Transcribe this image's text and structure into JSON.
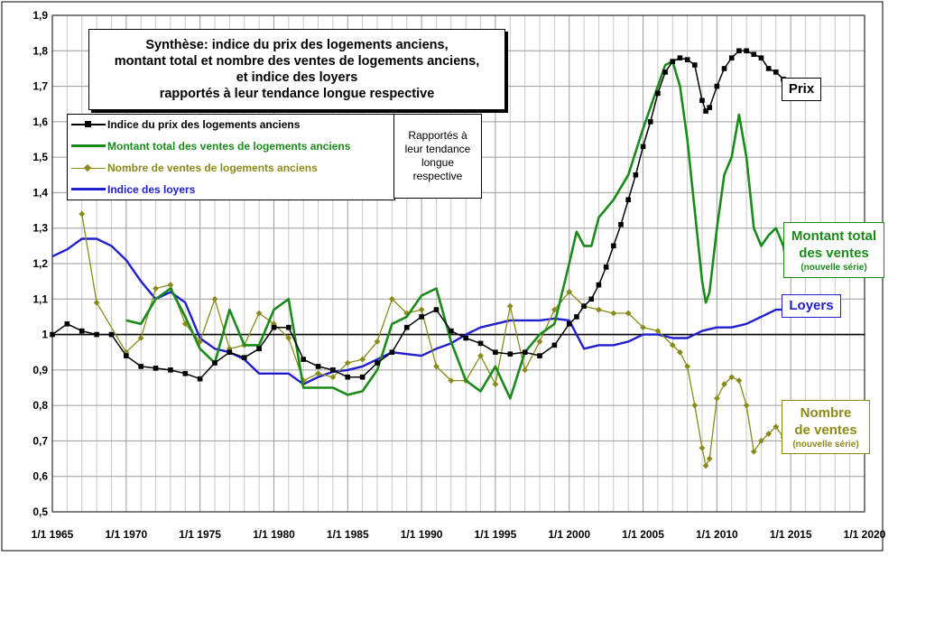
{
  "chart_data": {
    "type": "line",
    "title": "Synthèse: indice du prix des logements anciens, montant total et nombre des ventes de logements anciens, et indice des loyers rapportés à leur tendance longue respective",
    "title_lines": [
      "Synthèse: indice du prix des logements anciens,",
      "montant total et nombre des ventes de logements anciens,",
      "et indice des loyers",
      "rapportés à leur tendance longue respective"
    ],
    "xlim": [
      1965,
      2020
    ],
    "ylim": [
      0.5,
      1.9
    ],
    "reference_line": 1.0,
    "grid": true,
    "x_ticks": [
      {
        "value": 1965,
        "label": "1/1 1965"
      },
      {
        "value": 1970,
        "label": "1/1 1970"
      },
      {
        "value": 1975,
        "label": "1/1 1975"
      },
      {
        "value": 1980,
        "label": "1/1 1980"
      },
      {
        "value": 1985,
        "label": "1/1 1985"
      },
      {
        "value": 1990,
        "label": "1/1 1990"
      },
      {
        "value": 1995,
        "label": "1/1 1995"
      },
      {
        "value": 2000,
        "label": "1/1 2000"
      },
      {
        "value": 2005,
        "label": "1/1 2005"
      },
      {
        "value": 2010,
        "label": "1/1 2010"
      },
      {
        "value": 2015,
        "label": "1/1 2015"
      },
      {
        "value": 2020,
        "label": "1/1 2020"
      }
    ],
    "y_ticks": [
      {
        "value": 0.5,
        "label": "0,5"
      },
      {
        "value": 0.6,
        "label": "0,6"
      },
      {
        "value": 0.7,
        "label": "0,7"
      },
      {
        "value": 0.8,
        "label": "0,8"
      },
      {
        "value": 0.9,
        "label": "0,9"
      },
      {
        "value": 1.0,
        "label": "1"
      },
      {
        "value": 1.1,
        "label": "1,1"
      },
      {
        "value": 1.2,
        "label": "1,2"
      },
      {
        "value": 1.3,
        "label": "1,3"
      },
      {
        "value": 1.4,
        "label": "1,4"
      },
      {
        "value": 1.5,
        "label": "1,5"
      },
      {
        "value": 1.6,
        "label": "1,6"
      },
      {
        "value": 1.7,
        "label": "1,7"
      },
      {
        "value": 1.8,
        "label": "1,8"
      },
      {
        "value": 1.9,
        "label": "1,9"
      }
    ],
    "series": [
      {
        "id": "prix",
        "name": "Indice du prix des logements anciens",
        "color": "#000000",
        "marker": "square",
        "x": [
          1965,
          1966,
          1967,
          1968,
          1969,
          1970,
          1971,
          1972,
          1973,
          1974,
          1975,
          1976,
          1977,
          1978,
          1979,
          1980,
          1981,
          1982,
          1983,
          1984,
          1985,
          1986,
          1987,
          1988,
          1989,
          1990,
          1991,
          1992,
          1993,
          1994,
          1995,
          1996,
          1997,
          1998,
          1999,
          2000,
          2000.5,
          2001,
          2001.5,
          2002,
          2002.5,
          2003,
          2003.5,
          2004,
          2004.5,
          2005,
          2005.5,
          2006,
          2006.5,
          2007,
          2007.5,
          2008,
          2008.5,
          2009,
          2009.25,
          2009.5,
          2010,
          2010.5,
          2011,
          2011.5,
          2012,
          2012.5,
          2013,
          2013.5,
          2014,
          2014.5,
          2014.75
        ],
        "y": [
          1.0,
          1.03,
          1.01,
          1.0,
          1.0,
          0.94,
          0.91,
          0.905,
          0.9,
          0.89,
          0.875,
          0.92,
          0.95,
          0.935,
          0.96,
          1.02,
          1.02,
          0.93,
          0.91,
          0.9,
          0.88,
          0.88,
          0.92,
          0.95,
          1.02,
          1.05,
          1.07,
          1.01,
          0.99,
          0.975,
          0.95,
          0.945,
          0.95,
          0.94,
          0.97,
          1.03,
          1.05,
          1.08,
          1.1,
          1.14,
          1.19,
          1.25,
          1.31,
          1.38,
          1.45,
          1.53,
          1.6,
          1.68,
          1.74,
          1.77,
          1.78,
          1.775,
          1.76,
          1.66,
          1.63,
          1.64,
          1.7,
          1.75,
          1.78,
          1.8,
          1.8,
          1.79,
          1.78,
          1.75,
          1.74,
          1.72,
          1.7
        ]
      },
      {
        "id": "montant",
        "name": "Montant total des ventes de logements anciens",
        "color": "#1a8a1a",
        "marker": "none",
        "x": [
          1970,
          1971,
          1972,
          1973,
          1974,
          1975,
          1976,
          1977,
          1978,
          1979,
          1980,
          1981,
          1982,
          1983,
          1984,
          1985,
          1986,
          1987,
          1988,
          1989,
          1990,
          1991,
          1992,
          1993,
          1994,
          1995,
          1996,
          1997,
          1998,
          1999,
          2000,
          2000.5,
          2001,
          2001.5,
          2002,
          2003,
          2004,
          2005,
          2006,
          2006.5,
          2007,
          2007.5,
          2008,
          2008.5,
          2009,
          2009.25,
          2009.5,
          2010,
          2010.5,
          2011,
          2011.5,
          2012,
          2012.5,
          2013,
          2013.5,
          2014,
          2014.5,
          2014.75
        ],
        "y": [
          1.04,
          1.03,
          1.1,
          1.13,
          1.05,
          0.96,
          0.92,
          1.07,
          0.97,
          0.97,
          1.07,
          1.1,
          0.85,
          0.85,
          0.85,
          0.83,
          0.84,
          0.9,
          1.03,
          1.05,
          1.11,
          1.13,
          0.98,
          0.87,
          0.84,
          0.91,
          0.82,
          0.95,
          1.0,
          1.03,
          1.2,
          1.29,
          1.25,
          1.25,
          1.33,
          1.38,
          1.45,
          1.58,
          1.7,
          1.76,
          1.77,
          1.7,
          1.55,
          1.35,
          1.15,
          1.09,
          1.12,
          1.3,
          1.45,
          1.5,
          1.62,
          1.5,
          1.3,
          1.25,
          1.28,
          1.3,
          1.25,
          1.19
        ]
      },
      {
        "id": "nombre",
        "name": "Nombre de ventes de logements anciens",
        "color": "#8a8a1a",
        "marker": "diamond",
        "x": [
          1967,
          1968,
          1970,
          1971,
          1972,
          1973,
          1974,
          1975,
          1976,
          1977,
          1978,
          1979,
          1980,
          1981,
          1982,
          1983,
          1984,
          1985,
          1986,
          1987,
          1988,
          1989,
          1990,
          1991,
          1992,
          1993,
          1994,
          1995,
          1996,
          1997,
          1998,
          1999,
          2000,
          2001,
          2002,
          2003,
          2004,
          2005,
          2006,
          2007,
          2007.5,
          2008,
          2008.5,
          2009,
          2009.25,
          2009.5,
          2010,
          2010.5,
          2011,
          2011.5,
          2012,
          2012.5,
          2013,
          2013.5,
          2014,
          2014.5,
          2014.75
        ],
        "y": [
          1.34,
          1.09,
          0.95,
          0.99,
          1.13,
          1.14,
          1.03,
          0.98,
          1.1,
          0.96,
          0.97,
          1.06,
          1.03,
          0.99,
          0.87,
          0.89,
          0.88,
          0.92,
          0.93,
          0.98,
          1.1,
          1.06,
          1.07,
          0.91,
          0.87,
          0.87,
          0.94,
          0.86,
          1.08,
          0.9,
          0.98,
          1.07,
          1.12,
          1.08,
          1.07,
          1.06,
          1.06,
          1.02,
          1.01,
          0.97,
          0.95,
          0.91,
          0.8,
          0.68,
          0.63,
          0.65,
          0.82,
          0.86,
          0.88,
          0.87,
          0.8,
          0.67,
          0.7,
          0.72,
          0.74,
          0.71,
          0.69
        ]
      },
      {
        "id": "loyers",
        "name": "Indice des loyers",
        "color": "#1f1fcf",
        "marker": "none",
        "x": [
          1965,
          1966,
          1967,
          1968,
          1969,
          1970,
          1971,
          1972,
          1973,
          1974,
          1975,
          1976,
          1977,
          1978,
          1979,
          1980,
          1981,
          1982,
          1983,
          1984,
          1985,
          1986,
          1987,
          1988,
          1989,
          1990,
          1991,
          1992,
          1993,
          1994,
          1995,
          1996,
          1997,
          1998,
          1999,
          2000,
          2001,
          2002,
          2003,
          2004,
          2005,
          2006,
          2007,
          2008,
          2009,
          2010,
          2011,
          2012,
          2013,
          2014,
          2015
        ],
        "y": [
          1.22,
          1.24,
          1.27,
          1.27,
          1.25,
          1.21,
          1.15,
          1.1,
          1.12,
          1.09,
          0.99,
          0.96,
          0.95,
          0.93,
          0.89,
          0.89,
          0.89,
          0.86,
          0.88,
          0.895,
          0.9,
          0.91,
          0.93,
          0.95,
          0.945,
          0.94,
          0.96,
          0.975,
          1.0,
          1.02,
          1.03,
          1.04,
          1.04,
          1.04,
          1.045,
          1.04,
          0.96,
          0.97,
          0.97,
          0.98,
          1.0,
          1.0,
          0.99,
          0.99,
          1.01,
          1.02,
          1.02,
          1.03,
          1.05,
          1.07,
          1.07
        ]
      }
    ]
  },
  "legend": {
    "items": [
      {
        "label": "Indice du prix des logements anciens",
        "color": "#000000"
      },
      {
        "label": "Montant total des ventes de logements anciens",
        "color": "#1a8a1a"
      },
      {
        "label": "Nombre de ventes de logements anciens",
        "color": "#8a8a1a"
      },
      {
        "label": "Indice des loyers",
        "color": "#1f1fcf"
      }
    ]
  },
  "note": {
    "lines": [
      "Rapportés à",
      "leur tendance",
      "longue",
      "respective"
    ]
  },
  "callouts": {
    "prix": "Prix",
    "montant_big_1": "Montant total",
    "montant_big_2": "des ventes",
    "montant_small": "(nouvelle série)",
    "loyers": "Loyers",
    "nombre_big_1": "Nombre",
    "nombre_big_2": "de ventes",
    "nombre_small": "(nouvelle série)"
  }
}
